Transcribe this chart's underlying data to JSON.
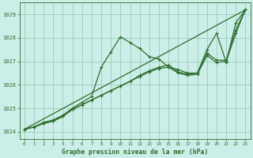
{
  "title": "Graphe pression niveau de la mer (hPa)",
  "background_color": "#cceee8",
  "grid_color": "#99ccbb",
  "line_color": "#2d6e2d",
  "xlim": [
    -0.5,
    23.5
  ],
  "ylim": [
    1023.7,
    1029.5
  ],
  "xticks": [
    0,
    1,
    2,
    3,
    4,
    5,
    6,
    7,
    8,
    9,
    10,
    11,
    12,
    13,
    14,
    15,
    16,
    17,
    18,
    19,
    20,
    21,
    22,
    23
  ],
  "yticks": [
    1024,
    1025,
    1026,
    1027,
    1028,
    1029
  ],
  "series": [
    {
      "x": [
        0,
        1,
        2,
        3,
        4,
        5,
        6,
        7,
        8,
        9,
        10,
        11,
        12,
        13,
        14,
        15,
        16,
        17,
        18,
        19,
        20,
        21,
        22,
        23
      ],
      "y": [
        1024.1,
        1024.2,
        1024.4,
        1024.5,
        1024.7,
        1025.0,
        1025.25,
        1025.5,
        1026.75,
        1027.4,
        1028.05,
        1027.8,
        1027.55,
        1027.2,
        1027.1,
        1026.75,
        1026.65,
        1026.5,
        1026.5,
        1027.5,
        1028.2,
        1026.95,
        1028.65,
        1029.2
      ]
    },
    {
      "x": [
        0,
        1,
        2,
        3,
        4,
        5,
        6,
        7,
        8,
        9,
        10,
        11,
        12,
        13,
        14,
        15,
        16,
        17,
        18,
        19,
        20,
        21,
        22,
        23
      ],
      "y": [
        1024.1,
        1024.2,
        1024.35,
        1024.45,
        1024.65,
        1024.95,
        1025.15,
        1025.35,
        1025.55,
        1025.75,
        1025.95,
        1026.15,
        1026.4,
        1026.6,
        1026.75,
        1026.85,
        1026.55,
        1026.45,
        1026.5,
        1027.35,
        1027.05,
        1027.05,
        1028.35,
        1029.2
      ]
    },
    {
      "x": [
        0,
        23
      ],
      "y": [
        1024.1,
        1029.2
      ]
    },
    {
      "x": [
        0,
        1,
        2,
        3,
        4,
        5,
        6,
        7,
        8,
        9,
        10,
        11,
        12,
        13,
        14,
        15,
        16,
        17,
        18,
        19,
        20,
        21,
        22,
        23
      ],
      "y": [
        1024.1,
        1024.2,
        1024.35,
        1024.45,
        1024.65,
        1024.95,
        1025.15,
        1025.35,
        1025.55,
        1025.75,
        1025.95,
        1026.15,
        1026.35,
        1026.55,
        1026.7,
        1026.75,
        1026.5,
        1026.4,
        1026.45,
        1027.25,
        1026.95,
        1027.0,
        1028.2,
        1029.2
      ]
    }
  ]
}
